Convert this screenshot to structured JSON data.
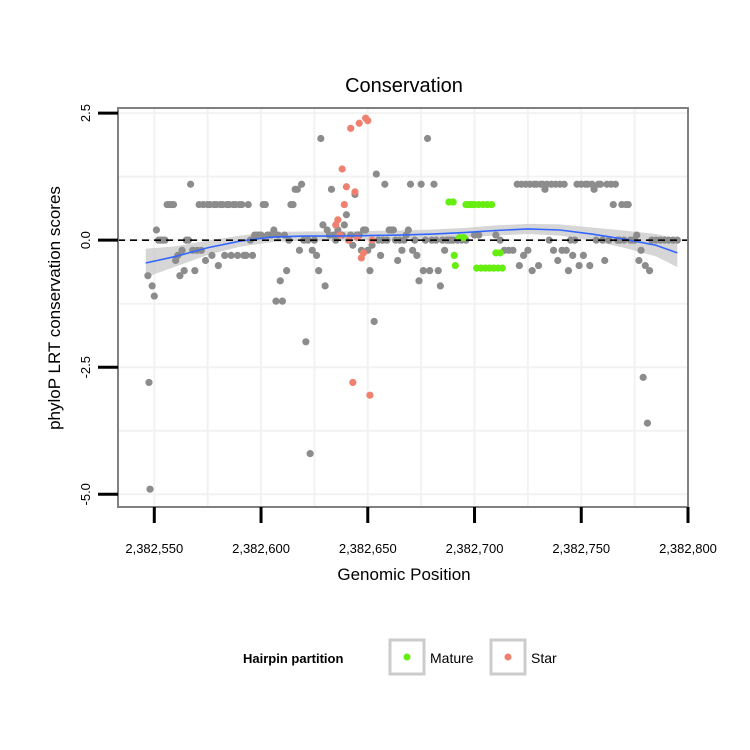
{
  "chart_data": {
    "type": "scatter",
    "title": "Conservation",
    "xlabel": "Genomic Position",
    "ylabel": "phyloP LRT conservation scores",
    "xlim": [
      2382533,
      2382800
    ],
    "ylim": [
      -5.25,
      2.6
    ],
    "x_ticks": [
      2382550,
      2382600,
      2382650,
      2382700,
      2382750,
      2382800
    ],
    "x_tick_labels": [
      "2,382,550",
      "2,382,600",
      "2,382,650",
      "2,382,700",
      "2,382,750",
      "2,382,800"
    ],
    "y_ticks": [
      -5.0,
      -2.5,
      0.0,
      2.5
    ],
    "y_tick_labels": [
      "-5.0",
      "-2.5",
      "0.0",
      "2.5"
    ],
    "reference_line": {
      "y": 0,
      "style": "dashed",
      "color": "#000000"
    },
    "grid": true,
    "legend": {
      "title": "Hairpin partition",
      "placement": "bottom",
      "entries": [
        {
          "label": "Mature",
          "color": "#66ee11"
        },
        {
          "label": "Star",
          "color": "#f08070"
        }
      ]
    },
    "colors": {
      "other": "#8c8c8c",
      "smooth_line": "#3366ff",
      "ribbon": "#c8c8c8"
    },
    "series": [
      {
        "name": "Other",
        "color": "#8c8c8c",
        "points": [
          [
            2382547,
            -0.7
          ],
          [
            2382547.5,
            -2.8
          ],
          [
            2382548,
            -4.9
          ],
          [
            2382549,
            -0.9
          ],
          [
            2382550,
            -1.1
          ],
          [
            2382551,
            0.2
          ],
          [
            2382552,
            0.0
          ],
          [
            2382553,
            0.0
          ],
          [
            2382554,
            0.0
          ],
          [
            2382555,
            0.0
          ],
          [
            2382556,
            0.7
          ],
          [
            2382557,
            0.7
          ],
          [
            2382558,
            0.7
          ],
          [
            2382559,
            0.7
          ],
          [
            2382560,
            -0.4
          ],
          [
            2382561,
            -0.3
          ],
          [
            2382562,
            -0.7
          ],
          [
            2382563,
            -0.2
          ],
          [
            2382564,
            -0.6
          ],
          [
            2382565,
            0.0
          ],
          [
            2382566,
            0.0
          ],
          [
            2382567,
            1.1
          ],
          [
            2382568,
            -0.2
          ],
          [
            2382569,
            -0.6
          ],
          [
            2382570,
            -0.2
          ],
          [
            2382571,
            0.7
          ],
          [
            2382572,
            -0.2
          ],
          [
            2382573,
            0.7
          ],
          [
            2382574,
            -0.4
          ],
          [
            2382575,
            0.7
          ],
          [
            2382576,
            0.7
          ],
          [
            2382577,
            -0.3
          ],
          [
            2382578,
            0.7
          ],
          [
            2382579,
            0.7
          ],
          [
            2382580,
            -0.5
          ],
          [
            2382581,
            0.7
          ],
          [
            2382582,
            0.7
          ],
          [
            2382583,
            -0.3
          ],
          [
            2382584,
            0.7
          ],
          [
            2382585,
            0.7
          ],
          [
            2382586,
            -0.3
          ],
          [
            2382587,
            0.7
          ],
          [
            2382588,
            0.7
          ],
          [
            2382589,
            -0.3
          ],
          [
            2382590,
            0.7
          ],
          [
            2382591,
            0.7
          ],
          [
            2382592,
            -0.3
          ],
          [
            2382593,
            -0.3
          ],
          [
            2382594,
            0.7
          ],
          [
            2382595,
            0.0
          ],
          [
            2382596,
            -0.3
          ],
          [
            2382597,
            0.1
          ],
          [
            2382598,
            0.1
          ],
          [
            2382599,
            0.1
          ],
          [
            2382600,
            0.1
          ],
          [
            2382601,
            0.7
          ],
          [
            2382602,
            0.7
          ],
          [
            2382603,
            0.1
          ],
          [
            2382604,
            0.1
          ],
          [
            2382605,
            0.1
          ],
          [
            2382606,
            0.2
          ],
          [
            2382607,
            -1.2
          ],
          [
            2382608,
            0.1
          ],
          [
            2382609,
            -0.8
          ],
          [
            2382610,
            -1.2
          ],
          [
            2382611,
            0.1
          ],
          [
            2382612,
            -0.6
          ],
          [
            2382613,
            0.0
          ],
          [
            2382614,
            0.7
          ],
          [
            2382615,
            0.7
          ],
          [
            2382616,
            1.0
          ],
          [
            2382617,
            1.0
          ],
          [
            2382618,
            -0.2
          ],
          [
            2382619,
            1.1
          ],
          [
            2382620,
            0.0
          ],
          [
            2382621,
            -2.0
          ],
          [
            2382622,
            0.0
          ],
          [
            2382623,
            -4.2
          ],
          [
            2382624,
            -0.2
          ],
          [
            2382625,
            0.0
          ],
          [
            2382626,
            -0.3
          ],
          [
            2382627,
            -0.6
          ],
          [
            2382628,
            2.0
          ],
          [
            2382629,
            0.3
          ],
          [
            2382630,
            -0.9
          ],
          [
            2382631,
            0.2
          ],
          [
            2382632,
            0.1
          ],
          [
            2382633,
            1.0
          ],
          [
            2382634,
            0.1
          ],
          [
            2382635,
            0.0
          ],
          [
            2382636,
            0.2
          ],
          [
            2382637,
            0.1
          ],
          [
            2382638,
            0.1
          ],
          [
            2382639,
            0.3
          ],
          [
            2382640,
            0.5
          ],
          [
            2382641,
            0.0
          ],
          [
            2382642,
            0.1
          ],
          [
            2382643,
            -0.1
          ],
          [
            2382644,
            0.9
          ],
          [
            2382645,
            0.1
          ],
          [
            2382646,
            0.1
          ],
          [
            2382647,
            -0.2
          ],
          [
            2382648,
            0.2
          ],
          [
            2382649,
            0.2
          ],
          [
            2382650,
            -0.2
          ],
          [
            2382651,
            -0.6
          ],
          [
            2382652,
            -0.1
          ],
          [
            2382653,
            -1.6
          ],
          [
            2382654,
            1.3
          ],
          [
            2382655,
            0.0
          ],
          [
            2382656,
            -0.3
          ],
          [
            2382657,
            0.0
          ],
          [
            2382658,
            1.1
          ],
          [
            2382659,
            0.0
          ],
          [
            2382660,
            0.2
          ],
          [
            2382661,
            0.2
          ],
          [
            2382662,
            0.2
          ],
          [
            2382663,
            0.0
          ],
          [
            2382664,
            -0.4
          ],
          [
            2382665,
            0.0
          ],
          [
            2382666,
            -0.2
          ],
          [
            2382667,
            0.0
          ],
          [
            2382668,
            0.1
          ],
          [
            2382669,
            0.2
          ],
          [
            2382670,
            1.1
          ],
          [
            2382671,
            -0.2
          ],
          [
            2382672,
            0.0
          ],
          [
            2382673,
            -0.3
          ],
          [
            2382674,
            -0.8
          ],
          [
            2382675,
            1.1
          ],
          [
            2382676,
            -0.6
          ],
          [
            2382677,
            0.0
          ],
          [
            2382678,
            2.0
          ],
          [
            2382679,
            -0.6
          ],
          [
            2382680,
            0.0
          ],
          [
            2382681,
            1.1
          ],
          [
            2382682,
            0.0
          ],
          [
            2382683,
            -0.6
          ],
          [
            2382684,
            -0.9
          ],
          [
            2382685,
            0.0
          ],
          [
            2382686,
            -0.2
          ],
          [
            2382687,
            0.0
          ],
          [
            2382688,
            0.0
          ],
          [
            2382689,
            0.0
          ],
          [
            2382690,
            0.0
          ],
          [
            2382692,
            0.0
          ],
          [
            2382694,
            0.0
          ],
          [
            2382696,
            0.0
          ],
          [
            2382700,
            0.1
          ],
          [
            2382702,
            0.1
          ],
          [
            2382710,
            0.1
          ],
          [
            2382712,
            0.0
          ],
          [
            2382714,
            -0.2
          ],
          [
            2382716,
            -0.2
          ],
          [
            2382718,
            -0.2
          ],
          [
            2382720,
            1.1
          ],
          [
            2382721,
            -0.5
          ],
          [
            2382722,
            1.1
          ],
          [
            2382723,
            -0.3
          ],
          [
            2382724,
            1.1
          ],
          [
            2382725,
            -0.2
          ],
          [
            2382726,
            1.1
          ],
          [
            2382727,
            -0.6
          ],
          [
            2382728,
            1.1
          ],
          [
            2382729,
            1.1
          ],
          [
            2382730,
            -0.5
          ],
          [
            2382731,
            1.1
          ],
          [
            2382732,
            1.1
          ],
          [
            2382733,
            1.0
          ],
          [
            2382734,
            1.1
          ],
          [
            2382735,
            0.0
          ],
          [
            2382736,
            1.1
          ],
          [
            2382737,
            -0.2
          ],
          [
            2382738,
            1.1
          ],
          [
            2382739,
            -0.4
          ],
          [
            2382740,
            1.1
          ],
          [
            2382741,
            -0.2
          ],
          [
            2382742,
            1.1
          ],
          [
            2382743,
            -0.2
          ],
          [
            2382744,
            -0.6
          ],
          [
            2382745,
            0.0
          ],
          [
            2382746,
            -0.3
          ],
          [
            2382747,
            0.0
          ],
          [
            2382748,
            1.1
          ],
          [
            2382749,
            -0.5
          ],
          [
            2382750,
            1.1
          ],
          [
            2382751,
            -0.3
          ],
          [
            2382752,
            1.1
          ],
          [
            2382753,
            1.1
          ],
          [
            2382754,
            -0.5
          ],
          [
            2382755,
            1.1
          ],
          [
            2382756,
            1.0
          ],
          [
            2382757,
            0.0
          ],
          [
            2382758,
            1.1
          ],
          [
            2382759,
            1.1
          ],
          [
            2382760,
            0.0
          ],
          [
            2382761,
            -0.4
          ],
          [
            2382762,
            1.1
          ],
          [
            2382763,
            0.0
          ],
          [
            2382764,
            1.1
          ],
          [
            2382765,
            0.7
          ],
          [
            2382766,
            1.1
          ],
          [
            2382767,
            0.0
          ],
          [
            2382768,
            0.0
          ],
          [
            2382769,
            0.7
          ],
          [
            2382770,
            0.0
          ],
          [
            2382771,
            0.7
          ],
          [
            2382772,
            0.7
          ],
          [
            2382773,
            0.0
          ],
          [
            2382774,
            0.0
          ],
          [
            2382775,
            0.0
          ],
          [
            2382776,
            0.1
          ],
          [
            2382777,
            -0.4
          ],
          [
            2382778,
            -0.2
          ],
          [
            2382779,
            -2.7
          ],
          [
            2382780,
            -0.5
          ],
          [
            2382781,
            -3.6
          ],
          [
            2382782,
            -0.6
          ],
          [
            2382783,
            0.0
          ],
          [
            2382785,
            0.0
          ],
          [
            2382787,
            0.0
          ],
          [
            2382789,
            0.0
          ],
          [
            2382791,
            0.0
          ],
          [
            2382793,
            0.0
          ],
          [
            2382795,
            0.0
          ]
        ]
      },
      {
        "name": "Mature",
        "color": "#66ee11",
        "points": [
          [
            2382688,
            0.75
          ],
          [
            2382690,
            0.75
          ],
          [
            2382690.5,
            -0.3
          ],
          [
            2382691,
            -0.5
          ],
          [
            2382693,
            0.05
          ],
          [
            2382695,
            0.05
          ],
          [
            2382696,
            0.7
          ],
          [
            2382697,
            0.7
          ],
          [
            2382698,
            0.7
          ],
          [
            2382699,
            0.7
          ],
          [
            2382700,
            0.7
          ],
          [
            2382701,
            -0.55
          ],
          [
            2382702,
            0.7
          ],
          [
            2382703,
            -0.55
          ],
          [
            2382704,
            0.7
          ],
          [
            2382705,
            -0.55
          ],
          [
            2382706,
            0.7
          ],
          [
            2382707,
            -0.55
          ],
          [
            2382708,
            0.7
          ],
          [
            2382709,
            -0.55
          ],
          [
            2382710,
            -0.25
          ],
          [
            2382711,
            -0.55
          ],
          [
            2382712,
            -0.25
          ],
          [
            2382713,
            -0.55
          ]
        ]
      },
      {
        "name": "Star",
        "color": "#f08070",
        "points": [
          [
            2382635,
            0.3
          ],
          [
            2382636,
            0.4
          ],
          [
            2382637,
            0.1
          ],
          [
            2382638,
            1.4
          ],
          [
            2382639,
            0.7
          ],
          [
            2382640,
            1.05
          ],
          [
            2382641,
            0.0
          ],
          [
            2382642,
            2.2
          ],
          [
            2382643,
            -2.8
          ],
          [
            2382644,
            0.95
          ],
          [
            2382645,
            0.05
          ],
          [
            2382646,
            2.3
          ],
          [
            2382647,
            -0.35
          ],
          [
            2382648,
            -0.25
          ],
          [
            2382649,
            2.4
          ],
          [
            2382650,
            2.35
          ],
          [
            2382651,
            -3.05
          ],
          [
            2382652,
            0.0
          ]
        ]
      }
    ],
    "smooth": {
      "x": [
        2382546,
        2382560,
        2382575,
        2382590,
        2382605,
        2382620,
        2382635,
        2382650,
        2382665,
        2382680,
        2382695,
        2382710,
        2382725,
        2382740,
        2382755,
        2382770,
        2382785,
        2382795
      ],
      "y": [
        -0.45,
        -0.32,
        -0.15,
        -0.02,
        0.06,
        0.08,
        0.08,
        0.09,
        0.1,
        0.12,
        0.15,
        0.19,
        0.22,
        0.2,
        0.12,
        0.02,
        -0.1,
        -0.25
      ],
      "se": [
        0.28,
        0.2,
        0.14,
        0.11,
        0.1,
        0.09,
        0.09,
        0.09,
        0.09,
        0.09,
        0.09,
        0.1,
        0.1,
        0.11,
        0.13,
        0.17,
        0.22,
        0.28
      ]
    }
  }
}
